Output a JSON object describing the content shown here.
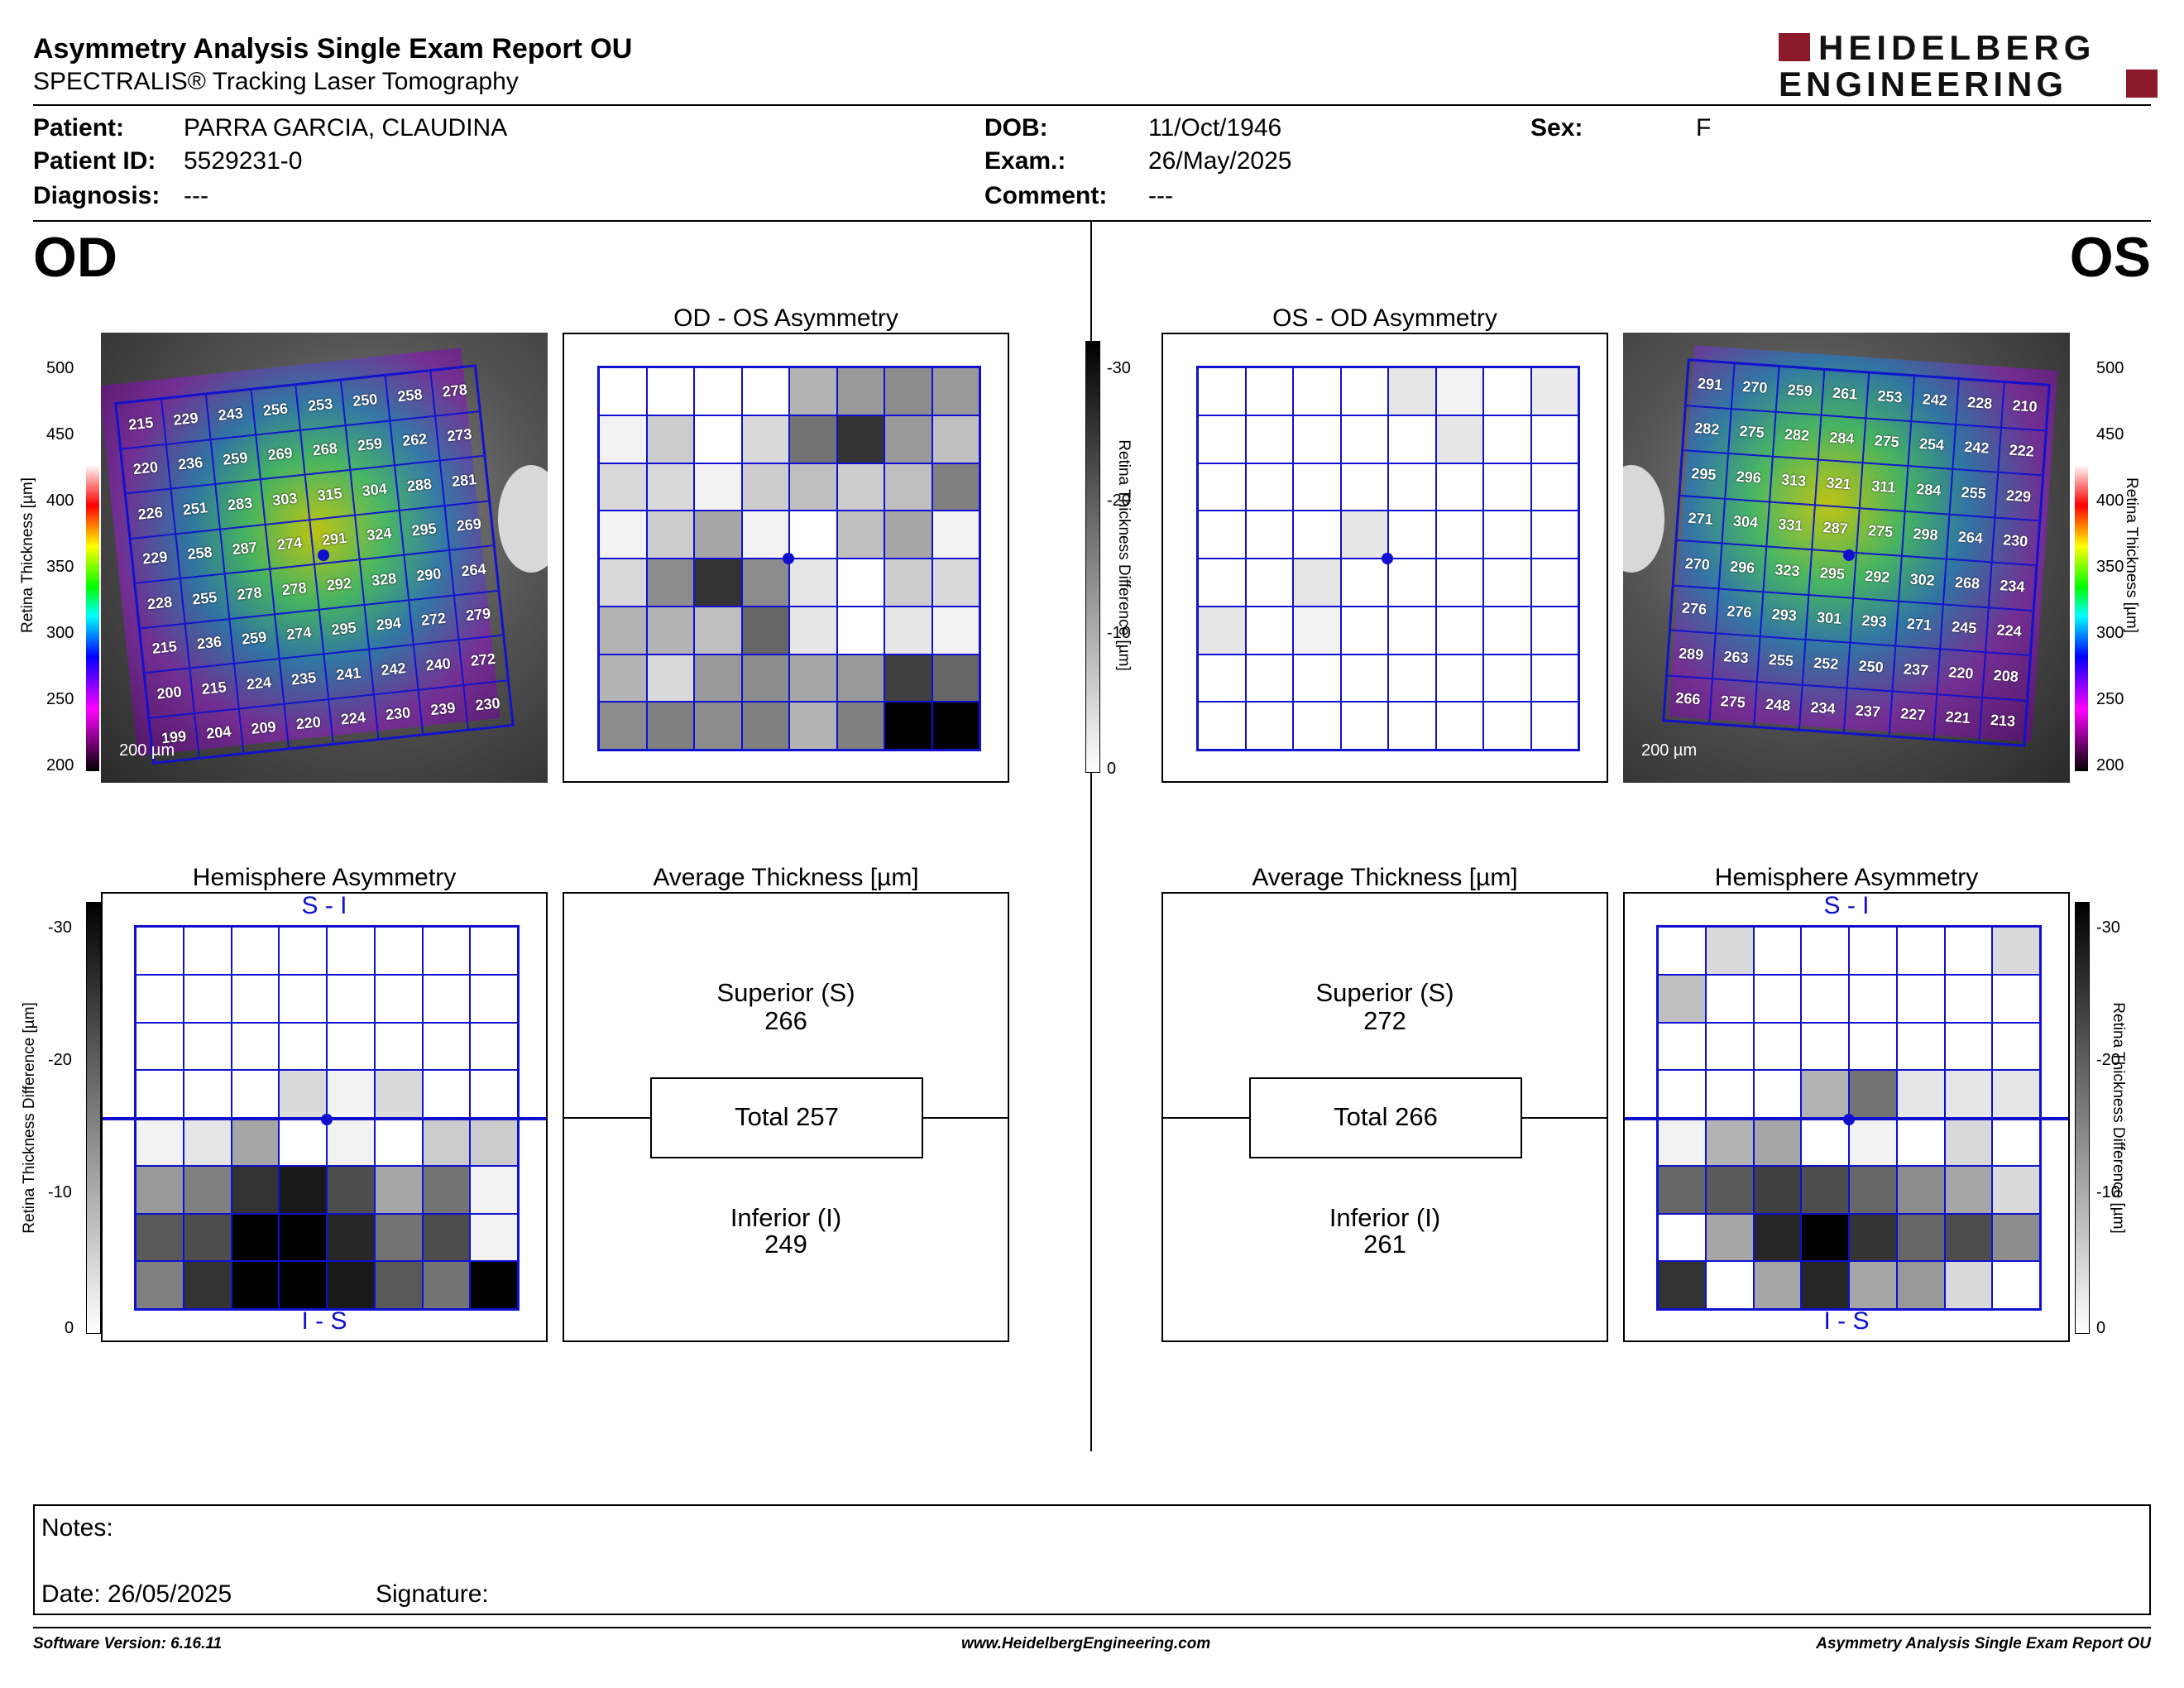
{
  "header": {
    "title": "Asymmetry Analysis Single Exam Report OU",
    "subtitle": "SPECTRALIS® Tracking Laser Tomography",
    "logo_line1": "HEIDELBERG",
    "logo_line2": "ENGINEERING",
    "logo_color": "#8b1a2b"
  },
  "patient": {
    "patient_label": "Patient:",
    "patient_value": "PARRA GARCIA, CLAUDINA",
    "id_label": "Patient ID:",
    "id_value": "5529231-0",
    "diagnosis_label": "Diagnosis:",
    "diagnosis_value": "---",
    "dob_label": "DOB:",
    "dob_value": "11/Oct/1946",
    "exam_label": "Exam.:",
    "exam_value": "26/May/2025",
    "comment_label": "Comment:",
    "comment_value": "---",
    "sex_label": "Sex:",
    "sex_value": "F"
  },
  "od": {
    "eye_label": "OD",
    "asym_title": "OD - OS Asymmetry",
    "hemi_title": "Hemisphere Asymmetry",
    "avg_title": "Average Thickness [µm]",
    "scale_bar": "200 µm",
    "thickness": [
      [
        215,
        229,
        243,
        256,
        253,
        250,
        258,
        278
      ],
      [
        220,
        236,
        259,
        269,
        268,
        259,
        262,
        273
      ],
      [
        226,
        251,
        283,
        303,
        315,
        304,
        288,
        281
      ],
      [
        229,
        258,
        287,
        274,
        291,
        324,
        295,
        269
      ],
      [
        228,
        255,
        278,
        278,
        292,
        328,
        290,
        264
      ],
      [
        215,
        236,
        259,
        274,
        295,
        294,
        272,
        279
      ],
      [
        200,
        215,
        224,
        235,
        241,
        242,
        240,
        272
      ],
      [
        199,
        204,
        209,
        220,
        224,
        230,
        239,
        230
      ]
    ],
    "asym_gray": [
      [
        0,
        0,
        0,
        0,
        0.3,
        0.4,
        0.45,
        0.4
      ],
      [
        0.05,
        0.2,
        0,
        0.15,
        0.55,
        0.8,
        0.4,
        0.25
      ],
      [
        0.15,
        0.15,
        0.05,
        0.2,
        0.25,
        0.2,
        0.25,
        0.5
      ],
      [
        0.05,
        0.2,
        0.35,
        0.05,
        0,
        0.25,
        0.35,
        0.05
      ],
      [
        0.15,
        0.45,
        0.8,
        0.45,
        0.1,
        0,
        0.2,
        0.15
      ],
      [
        0.3,
        0.3,
        0.25,
        0.6,
        0.1,
        0,
        0.1,
        0.05
      ],
      [
        0.3,
        0.15,
        0.4,
        0.45,
        0.35,
        0.4,
        0.75,
        0.6
      ],
      [
        0.45,
        0.5,
        0.45,
        0.5,
        0.3,
        0.5,
        1,
        1
      ]
    ],
    "hemi_top_label": "S - I",
    "hemi_bottom_label": "I - S",
    "hemi_gray": [
      [
        0,
        0,
        0,
        0,
        0,
        0,
        0,
        0
      ],
      [
        0,
        0,
        0,
        0,
        0,
        0,
        0,
        0
      ],
      [
        0,
        0,
        0,
        0,
        0,
        0,
        0,
        0
      ],
      [
        0,
        0,
        0,
        0.15,
        0.05,
        0.15,
        0,
        0
      ],
      [
        0.05,
        0.1,
        0.35,
        0,
        0.05,
        0,
        0.2,
        0.2
      ],
      [
        0.4,
        0.5,
        0.8,
        0.9,
        0.7,
        0.35,
        0.55,
        0.05
      ],
      [
        0.65,
        0.7,
        1,
        1,
        0.85,
        0.55,
        0.7,
        0.05
      ],
      [
        0.5,
        0.8,
        1,
        1,
        0.9,
        0.65,
        0.55,
        1
      ]
    ],
    "superior_label": "Superior (S)",
    "superior_value": "266",
    "total_text": "Total 257",
    "inferior_label": "Inferior (I)",
    "inferior_value": "249"
  },
  "os": {
    "eye_label": "OS",
    "asym_title": "OS - OD Asymmetry",
    "hemi_title": "Hemisphere Asymmetry",
    "avg_title": "Average Thickness [µm]",
    "scale_bar": "200 µm",
    "thickness": [
      [
        291,
        270,
        259,
        261,
        253,
        242,
        228,
        210
      ],
      [
        282,
        275,
        282,
        284,
        275,
        254,
        242,
        222
      ],
      [
        295,
        296,
        313,
        321,
        311,
        284,
        255,
        229
      ],
      [
        271,
        304,
        331,
        287,
        275,
        298,
        264,
        230
      ],
      [
        270,
        296,
        323,
        295,
        292,
        302,
        268,
        234
      ],
      [
        276,
        276,
        293,
        301,
        293,
        271,
        245,
        224
      ],
      [
        289,
        263,
        255,
        252,
        250,
        237,
        220,
        208
      ],
      [
        266,
        275,
        248,
        234,
        237,
        227,
        221,
        213
      ]
    ],
    "asym_gray": [
      [
        0,
        0,
        0,
        0,
        0.1,
        0.05,
        0,
        0.08
      ],
      [
        0,
        0,
        0,
        0,
        0,
        0.1,
        0,
        0
      ],
      [
        0,
        0,
        0,
        0,
        0,
        0,
        0,
        0
      ],
      [
        0,
        0,
        0,
        0.1,
        0,
        0,
        0,
        0
      ],
      [
        0,
        0,
        0.1,
        0,
        0,
        0,
        0,
        0
      ],
      [
        0.1,
        0,
        0.05,
        0,
        0,
        0,
        0,
        0
      ],
      [
        0,
        0,
        0,
        0,
        0,
        0,
        0,
        0
      ],
      [
        0,
        0,
        0,
        0,
        0,
        0,
        0,
        0
      ]
    ],
    "hemi_top_label": "S - I",
    "hemi_bottom_label": "I - S",
    "hemi_gray": [
      [
        0,
        0.15,
        0,
        0,
        0,
        0,
        0,
        0.15
      ],
      [
        0.25,
        0,
        0,
        0,
        0,
        0,
        0,
        0
      ],
      [
        0,
        0,
        0,
        0,
        0,
        0,
        0,
        0
      ],
      [
        0,
        0,
        0,
        0.3,
        0.55,
        0.1,
        0.1,
        0.1
      ],
      [
        0.05,
        0.3,
        0.35,
        0,
        0.05,
        0,
        0.15,
        0
      ],
      [
        0.6,
        0.65,
        0.75,
        0.7,
        0.6,
        0.45,
        0.35,
        0.15
      ],
      [
        0,
        0.35,
        0.85,
        1,
        0.8,
        0.6,
        0.7,
        0.45
      ],
      [
        0.8,
        0,
        0.35,
        0.85,
        0.35,
        0.4,
        0.15,
        0
      ]
    ],
    "superior_label": "Superior (S)",
    "superior_value": "272",
    "total_text": "Total 266",
    "inferior_label": "Inferior (I)",
    "inferior_value": "261"
  },
  "scales": {
    "thickness_ticks": [
      "500",
      "450",
      "400",
      "350",
      "300",
      "250",
      "200"
    ],
    "thickness_axis": "Retina Thickness [µm]",
    "diff_ticks": [
      "-30",
      "-20",
      "-10",
      "0"
    ],
    "diff_axis": "Retina Thickness Difference [µm]"
  },
  "notes": {
    "notes_label": "Notes:",
    "date_text": "Date: 26/05/2025",
    "signature_label": "Signature:"
  },
  "footer": {
    "software": "Software Version: 6.16.11",
    "website": "www.HeidelbergEngineering.com",
    "report": "Asymmetry Analysis Single Exam Report OU"
  }
}
